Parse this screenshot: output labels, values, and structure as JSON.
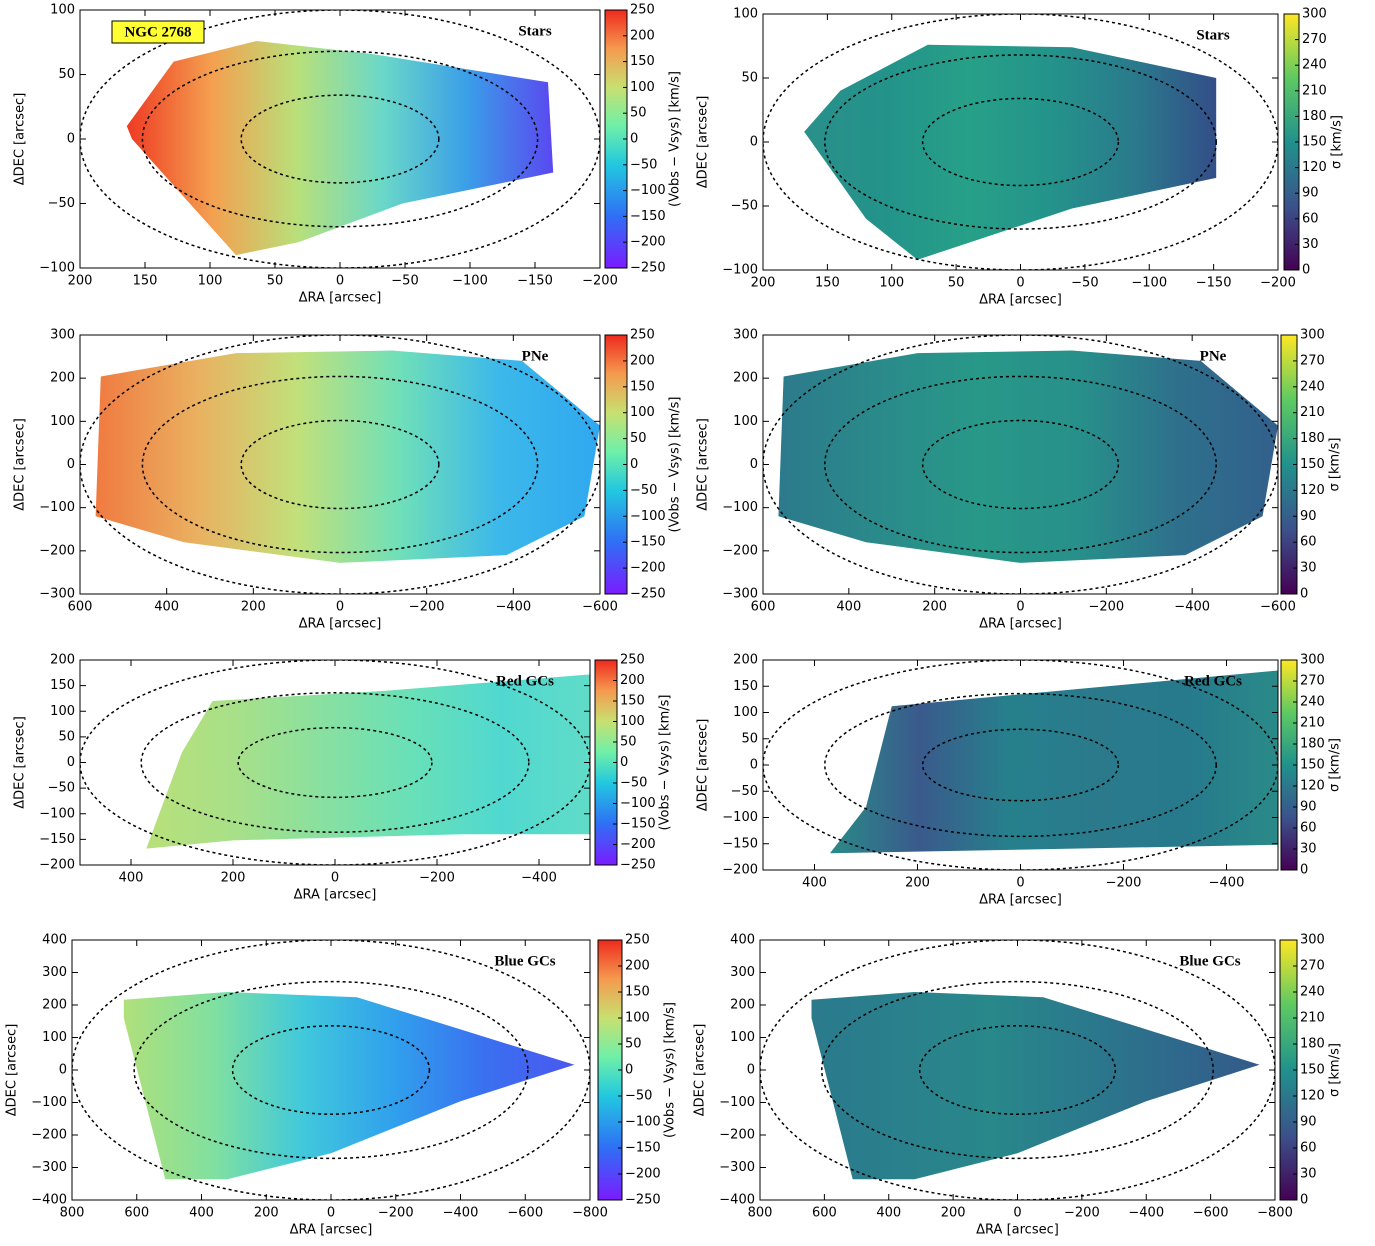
{
  "chart_data": [
    {
      "type": "map",
      "title": "Stars",
      "annotation": "NGC 2768",
      "xlabel": "ΔRA [arcsec]",
      "ylabel": "ΔDEC [arcsec]",
      "xlim": [
        200,
        -200
      ],
      "xticks": [
        200,
        150,
        100,
        50,
        0,
        {
          "value": -50,
          "label": "−50"
        },
        {
          "value": -100,
          "label": "−100"
        },
        {
          "value": -150,
          "label": "−150"
        },
        {
          "value": -200,
          "label": "−200"
        }
      ],
      "ylim": [
        -100,
        100
      ],
      "yticks": [
        {
          "value": -100,
          "label": "−100"
        },
        {
          "value": -50,
          "label": "−50"
        },
        0,
        50,
        100
      ],
      "colorbar": {
        "label": "(Vobs − Vsys) [km/s]",
        "lim": [
          -250,
          250
        ],
        "ticks": [
          {
            "value": -250,
            "label": "−250"
          },
          {
            "value": -200,
            "label": "−200"
          },
          {
            "value": -150,
            "label": "−150"
          },
          {
            "value": -100,
            "label": "−100"
          },
          {
            "value": -50,
            "label": "−50"
          },
          0,
          50,
          100,
          150,
          200,
          250
        ]
      }
    },
    {
      "type": "map",
      "title": "Stars",
      "xlabel": "ΔRA [arcsec]",
      "ylabel": "ΔDEC [arcsec]",
      "xlim": [
        200,
        -200
      ],
      "xticks": [
        200,
        150,
        100,
        50,
        0,
        {
          "value": -50,
          "label": "−50"
        },
        {
          "value": -100,
          "label": "−100"
        },
        {
          "value": -150,
          "label": "−150"
        },
        {
          "value": -200,
          "label": "−200"
        }
      ],
      "ylim": [
        -100,
        100
      ],
      "yticks": [
        {
          "value": -100,
          "label": "−100"
        },
        {
          "value": -50,
          "label": "−50"
        },
        0,
        50,
        100
      ],
      "colorbar": {
        "label": "σ [km/s]",
        "lim": [
          0,
          300
        ],
        "ticks": [
          0,
          30,
          60,
          90,
          120,
          150,
          180,
          210,
          240,
          270,
          300
        ]
      }
    },
    {
      "type": "map",
      "title": "PNe",
      "xlabel": "ΔRA [arcsec]",
      "ylabel": "ΔDEC [arcsec]",
      "xlim": [
        600,
        -600
      ],
      "xticks": [
        600,
        400,
        200,
        0,
        {
          "value": -200,
          "label": "−200"
        },
        {
          "value": -400,
          "label": "−400"
        },
        {
          "value": -600,
          "label": "−600"
        }
      ],
      "ylim": [
        -300,
        300
      ],
      "yticks": [
        {
          "value": -300,
          "label": "−300"
        },
        {
          "value": -200,
          "label": "−200"
        },
        {
          "value": -100,
          "label": "−100"
        },
        0,
        100,
        200,
        300
      ],
      "colorbar": {
        "label": "(Vobs − Vsys) [km/s]",
        "lim": [
          -250,
          250
        ],
        "ticks": [
          {
            "value": -250,
            "label": "−250"
          },
          {
            "value": -200,
            "label": "−200"
          },
          {
            "value": -150,
            "label": "−150"
          },
          {
            "value": -100,
            "label": "−100"
          },
          {
            "value": -50,
            "label": "−50"
          },
          0,
          50,
          100,
          150,
          200,
          250
        ]
      }
    },
    {
      "type": "map",
      "title": "PNe",
      "xlabel": "ΔRA [arcsec]",
      "ylabel": "ΔDEC [arcsec]",
      "xlim": [
        600,
        -600
      ],
      "xticks": [
        600,
        400,
        200,
        0,
        {
          "value": -200,
          "label": "−200"
        },
        {
          "value": -400,
          "label": "−400"
        },
        {
          "value": -600,
          "label": "−600"
        }
      ],
      "ylim": [
        -300,
        300
      ],
      "yticks": [
        {
          "value": -300,
          "label": "−300"
        },
        {
          "value": -200,
          "label": "−200"
        },
        {
          "value": -100,
          "label": "−100"
        },
        0,
        100,
        200,
        300
      ],
      "colorbar": {
        "label": "σ [km/s]",
        "lim": [
          0,
          300
        ],
        "ticks": [
          0,
          30,
          60,
          90,
          120,
          150,
          180,
          210,
          240,
          270,
          300
        ]
      }
    },
    {
      "type": "map",
      "title": "Red GCs",
      "xlabel": "ΔRA [arcsec]",
      "ylabel": "ΔDEC [arcsec]",
      "xlim": [
        500,
        -500
      ],
      "xticks": [
        400,
        200,
        0,
        {
          "value": -200,
          "label": "−200"
        },
        {
          "value": -400,
          "label": "−400"
        }
      ],
      "ylim": [
        -200,
        200
      ],
      "yticks": [
        {
          "value": -200,
          "label": "−200"
        },
        {
          "value": -150,
          "label": "−150"
        },
        {
          "value": -100,
          "label": "−100"
        },
        {
          "value": -50,
          "label": "−50"
        },
        0,
        50,
        100,
        150,
        200
      ],
      "colorbar": {
        "label": "(Vobs − Vsys) [km/s]",
        "lim": [
          -250,
          250
        ],
        "ticks": [
          {
            "value": -250,
            "label": "−250"
          },
          {
            "value": -200,
            "label": "−200"
          },
          {
            "value": -150,
            "label": "−150"
          },
          {
            "value": -100,
            "label": "−100"
          },
          {
            "value": -50,
            "label": "−50"
          },
          0,
          50,
          100,
          150,
          200,
          250
        ]
      }
    },
    {
      "type": "map",
      "title": "Red GCs",
      "xlabel": "ΔRA [arcsec]",
      "ylabel": "ΔDEC [arcsec]",
      "xlim": [
        500,
        -500
      ],
      "xticks": [
        400,
        200,
        0,
        {
          "value": -200,
          "label": "−200"
        },
        {
          "value": -400,
          "label": "−400"
        }
      ],
      "ylim": [
        -200,
        200
      ],
      "yticks": [
        {
          "value": -200,
          "label": "−200"
        },
        {
          "value": -150,
          "label": "−150"
        },
        {
          "value": -100,
          "label": "−100"
        },
        {
          "value": -50,
          "label": "−50"
        },
        0,
        50,
        100,
        150,
        200
      ],
      "colorbar": {
        "label": "σ [km/s]",
        "lim": [
          0,
          300
        ],
        "ticks": [
          0,
          30,
          60,
          90,
          120,
          150,
          180,
          210,
          240,
          270,
          300
        ]
      }
    },
    {
      "type": "map",
      "title": "Blue GCs",
      "xlabel": "ΔRA [arcsec]",
      "ylabel": "ΔDEC [arcsec]",
      "xlim": [
        800,
        -800
      ],
      "xticks": [
        800,
        600,
        400,
        200,
        0,
        {
          "value": -200,
          "label": "−200"
        },
        {
          "value": -400,
          "label": "−400"
        },
        {
          "value": -600,
          "label": "−600"
        },
        {
          "value": -800,
          "label": "−800"
        }
      ],
      "ylim": [
        -400,
        400
      ],
      "yticks": [
        {
          "value": -400,
          "label": "−400"
        },
        {
          "value": -300,
          "label": "−300"
        },
        {
          "value": -200,
          "label": "−200"
        },
        {
          "value": -100,
          "label": "−100"
        },
        0,
        100,
        200,
        300,
        400
      ],
      "colorbar": {
        "label": "(Vobs − Vsys) [km/s]",
        "lim": [
          -250,
          250
        ],
        "ticks": [
          {
            "value": -250,
            "label": "−250"
          },
          {
            "value": -200,
            "label": "−200"
          },
          {
            "value": -150,
            "label": "−150"
          },
          {
            "value": -100,
            "label": "−100"
          },
          {
            "value": -50,
            "label": "−50"
          },
          0,
          50,
          100,
          150,
          200,
          250
        ]
      }
    },
    {
      "type": "map",
      "title": "Blue GCs",
      "xlabel": "ΔRA [arcsec]",
      "ylabel": "ΔDEC [arcsec]",
      "xlim": [
        800,
        -800
      ],
      "xticks": [
        800,
        600,
        400,
        200,
        0,
        {
          "value": -200,
          "label": "−200"
        },
        {
          "value": -400,
          "label": "−400"
        },
        {
          "value": -600,
          "label": "−600"
        },
        {
          "value": -800,
          "label": "−800"
        }
      ],
      "ylim": [
        -400,
        400
      ],
      "yticks": [
        {
          "value": -400,
          "label": "−400"
        },
        {
          "value": -300,
          "label": "−300"
        },
        {
          "value": -200,
          "label": "−200"
        },
        {
          "value": -100,
          "label": "−100"
        },
        0,
        100,
        200,
        300,
        400
      ],
      "colorbar": {
        "label": "σ [km/s]",
        "lim": [
          0,
          300
        ],
        "ticks": [
          0,
          30,
          60,
          90,
          120,
          150,
          180,
          210,
          240,
          270,
          300
        ]
      }
    }
  ]
}
